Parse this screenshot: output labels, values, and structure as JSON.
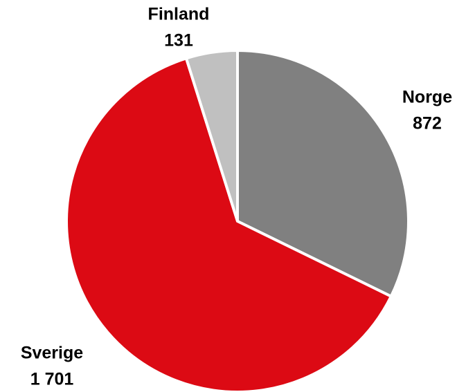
{
  "chart_data": {
    "type": "pie",
    "categories": [
      "Norge",
      "Sverige",
      "Finland"
    ],
    "values": [
      872,
      1701,
      131
    ],
    "value_labels": [
      "872",
      "1 701",
      "131"
    ],
    "colors": [
      "#808080",
      "#dc0a14",
      "#c0c0c0"
    ]
  }
}
